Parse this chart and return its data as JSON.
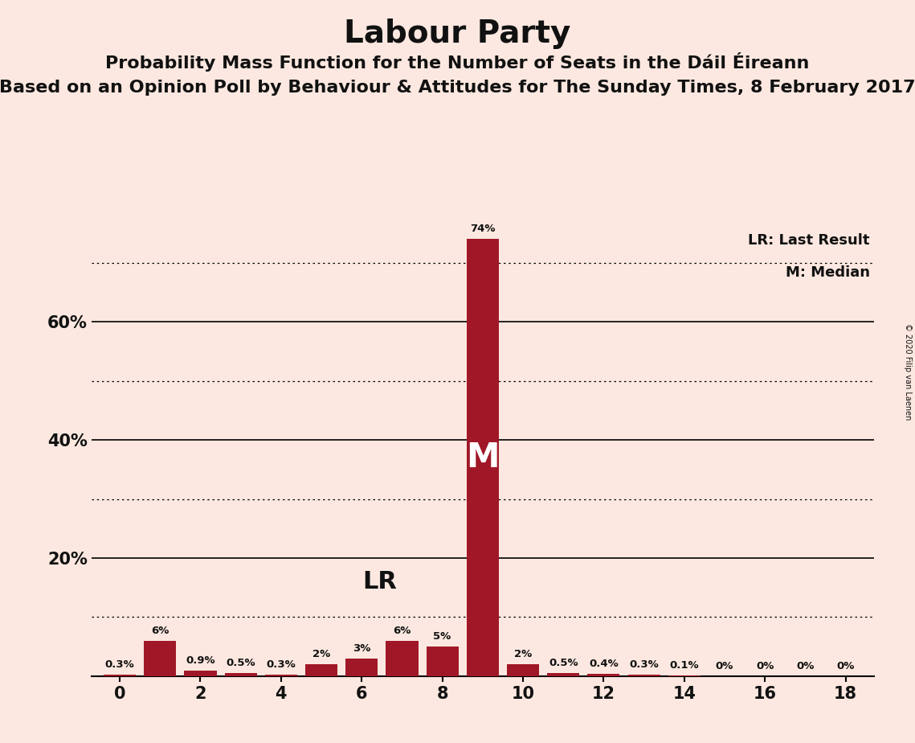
{
  "title": "Labour Party",
  "subtitle1": "Probability Mass Function for the Number of Seats in the Dáil Éireann",
  "subtitle2": "Based on an Opinion Poll by Behaviour & Attitudes for The Sunday Times, 8 February 2017",
  "copyright": "© 2020 Filip van Laenen",
  "background_color": "#fce8e0",
  "bar_color": "#a01828",
  "seats": [
    0,
    1,
    2,
    3,
    4,
    5,
    6,
    7,
    8,
    9,
    10,
    11,
    12,
    13,
    14,
    15,
    16,
    17,
    18
  ],
  "probabilities": [
    0.3,
    6.0,
    0.9,
    0.5,
    0.3,
    2.0,
    3.0,
    6.0,
    5.0,
    74.0,
    2.0,
    0.5,
    0.4,
    0.3,
    0.1,
    0.0,
    0.0,
    0.0,
    0.0
  ],
  "labels": [
    "0.3%",
    "6%",
    "0.9%",
    "0.5%",
    "0.3%",
    "2%",
    "3%",
    "6%",
    "5%",
    "74%",
    "2%",
    "0.5%",
    "0.4%",
    "0.3%",
    "0.1%",
    "0%",
    "0%",
    "0%",
    "0%"
  ],
  "median_seat": 9,
  "lr_seat": 7,
  "ylim_max": 78,
  "solid_gridlines": [
    20,
    40,
    60
  ],
  "dotted_gridlines": [
    10,
    30,
    50,
    70
  ],
  "ytick_positions": [
    20,
    40,
    60
  ],
  "ytick_labels": [
    "20%",
    "40%",
    "60%"
  ],
  "title_fontsize": 28,
  "subtitle1_fontsize": 16,
  "subtitle2_fontsize": 16,
  "text_color": "#111111"
}
